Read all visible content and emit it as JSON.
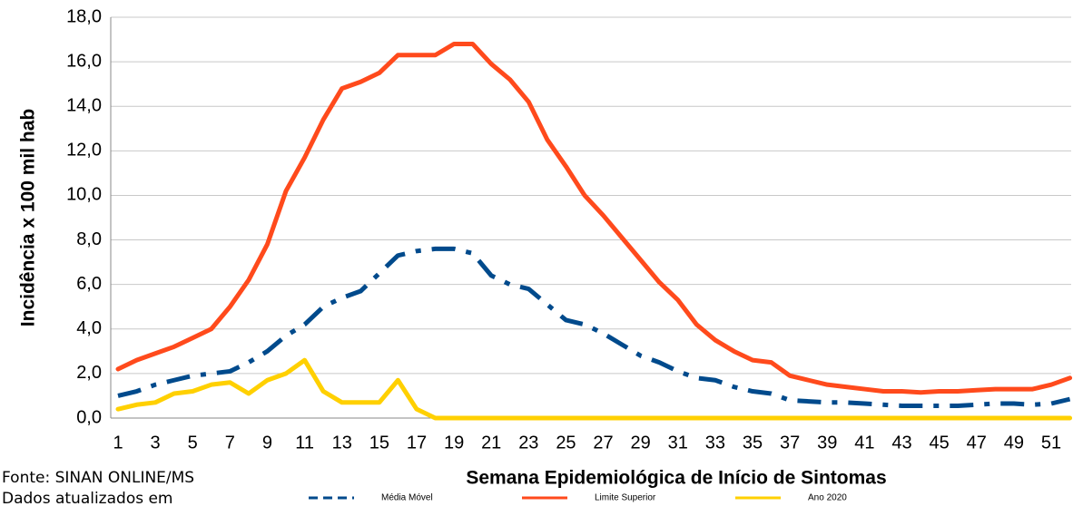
{
  "chart_data": {
    "type": "line",
    "y_label": "Incidência x 100 mil hab",
    "x_label": "Semana Epidemiológica de Início de Sintomas",
    "annotations": [
      "Fonte: SINAN ONLINE/MS",
      "Dados atualizados em"
    ],
    "categories": [
      1,
      null,
      3,
      null,
      5,
      null,
      7,
      null,
      9,
      null,
      11,
      null,
      13,
      null,
      15,
      null,
      17,
      null,
      19,
      null,
      21,
      null,
      23,
      null,
      25,
      null,
      27,
      null,
      29,
      null,
      31,
      null,
      33,
      null,
      35,
      null,
      37,
      null,
      39,
      null,
      41,
      null,
      43,
      null,
      45,
      null,
      47,
      null,
      49,
      null,
      51,
      null
    ],
    "ylim": [
      0,
      18
    ],
    "yticks": [
      {
        "value": 0,
        "label": "0,0"
      },
      {
        "value": 2,
        "label": "2,0"
      },
      {
        "value": 4,
        "label": "4,0"
      },
      {
        "value": 6,
        "label": "6,0"
      },
      {
        "value": 8,
        "label": "8,0"
      },
      {
        "value": 10,
        "label": "10,0"
      },
      {
        "value": 12,
        "label": "12,0"
      },
      {
        "value": 14,
        "label": "14,0"
      },
      {
        "value": 16,
        "label": "16,0"
      },
      {
        "value": 18,
        "label": "18,0"
      }
    ],
    "grid": true,
    "series": [
      {
        "name": "Média Móvel",
        "color": "#004a8c",
        "dashed": true,
        "values": [
          1.0,
          1.2,
          1.5,
          1.7,
          1.9,
          2.0,
          2.1,
          2.5,
          3.0,
          3.7,
          4.2,
          5.0,
          5.4,
          5.7,
          6.5,
          7.3,
          7.5,
          7.6,
          7.6,
          7.4,
          6.4,
          6.0,
          5.8,
          5.1,
          4.4,
          4.2,
          3.8,
          3.3,
          2.8,
          2.5,
          2.1,
          1.8,
          1.7,
          1.4,
          1.2,
          1.1,
          0.8,
          0.75,
          0.7,
          0.7,
          0.65,
          0.6,
          0.55,
          0.55,
          0.55,
          0.55,
          0.6,
          0.65,
          0.65,
          0.6,
          0.65,
          0.85
        ]
      },
      {
        "name": "Limite Superior",
        "color": "#ff4a1c",
        "dashed": false,
        "values": [
          2.2,
          2.6,
          2.9,
          3.2,
          3.6,
          4.0,
          5.0,
          6.2,
          7.8,
          10.2,
          11.7,
          13.4,
          14.8,
          15.1,
          15.5,
          16.3,
          16.3,
          16.3,
          16.8,
          16.8,
          15.9,
          15.2,
          14.2,
          12.5,
          11.3,
          10.0,
          9.1,
          8.1,
          7.1,
          6.1,
          5.3,
          4.2,
          3.5,
          3.0,
          2.6,
          2.5,
          1.9,
          1.7,
          1.5,
          1.4,
          1.3,
          1.2,
          1.2,
          1.15,
          1.2,
          1.2,
          1.25,
          1.3,
          1.3,
          1.3,
          1.5,
          1.8
        ]
      },
      {
        "name": "Ano 2020",
        "color": "#ffd000",
        "dashed": false,
        "values": [
          0.4,
          0.6,
          0.7,
          1.1,
          1.2,
          1.5,
          1.6,
          1.1,
          1.7,
          2.0,
          2.6,
          1.2,
          0.7,
          0.7,
          0.7,
          1.7,
          0.4,
          0,
          0,
          0,
          0,
          0,
          0,
          0,
          0,
          0,
          0,
          0,
          0,
          0,
          0,
          0,
          0,
          0,
          0,
          0,
          0,
          0,
          0,
          0,
          0,
          0,
          0,
          0,
          0,
          0,
          0,
          0,
          0,
          0,
          0,
          0
        ]
      }
    ]
  }
}
